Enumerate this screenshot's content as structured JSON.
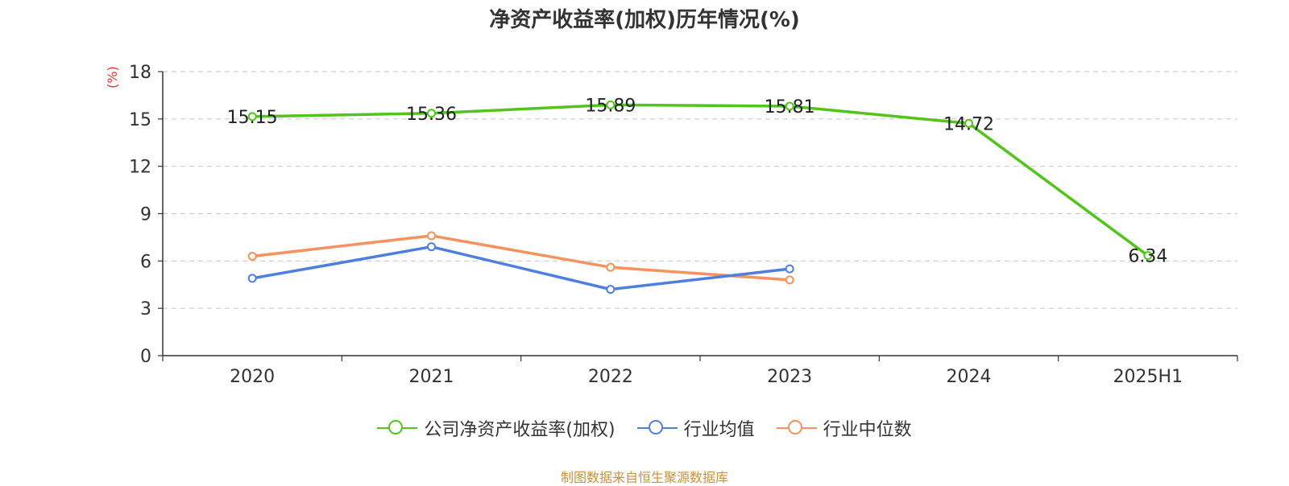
{
  "chart_data": {
    "type": "line",
    "title": "净资产收益率(加权)历年情况(%)",
    "ylabel": "(%)",
    "xlabel": "",
    "categories": [
      "2020",
      "2021",
      "2022",
      "2023",
      "2024",
      "2025H1"
    ],
    "ylim": [
      0,
      18
    ],
    "yticks": [
      0,
      3,
      6,
      9,
      12,
      15,
      18
    ],
    "grid": true,
    "legend_position": "bottom",
    "series": [
      {
        "name": "公司净资产收益率(加权)",
        "color": "#52c41a",
        "values": [
          15.15,
          15.36,
          15.89,
          15.81,
          14.72,
          6.34
        ],
        "show_labels": true
      },
      {
        "name": "行业均值",
        "color": "#4f7fde",
        "values": [
          4.9,
          6.9,
          4.2,
          5.5,
          null,
          null
        ],
        "show_labels": false
      },
      {
        "name": "行业中位数",
        "color": "#f5925e",
        "values": [
          6.3,
          7.6,
          5.6,
          4.8,
          null,
          null
        ],
        "show_labels": false
      }
    ]
  },
  "source_note": "制图数据来自恒生聚源数据库"
}
